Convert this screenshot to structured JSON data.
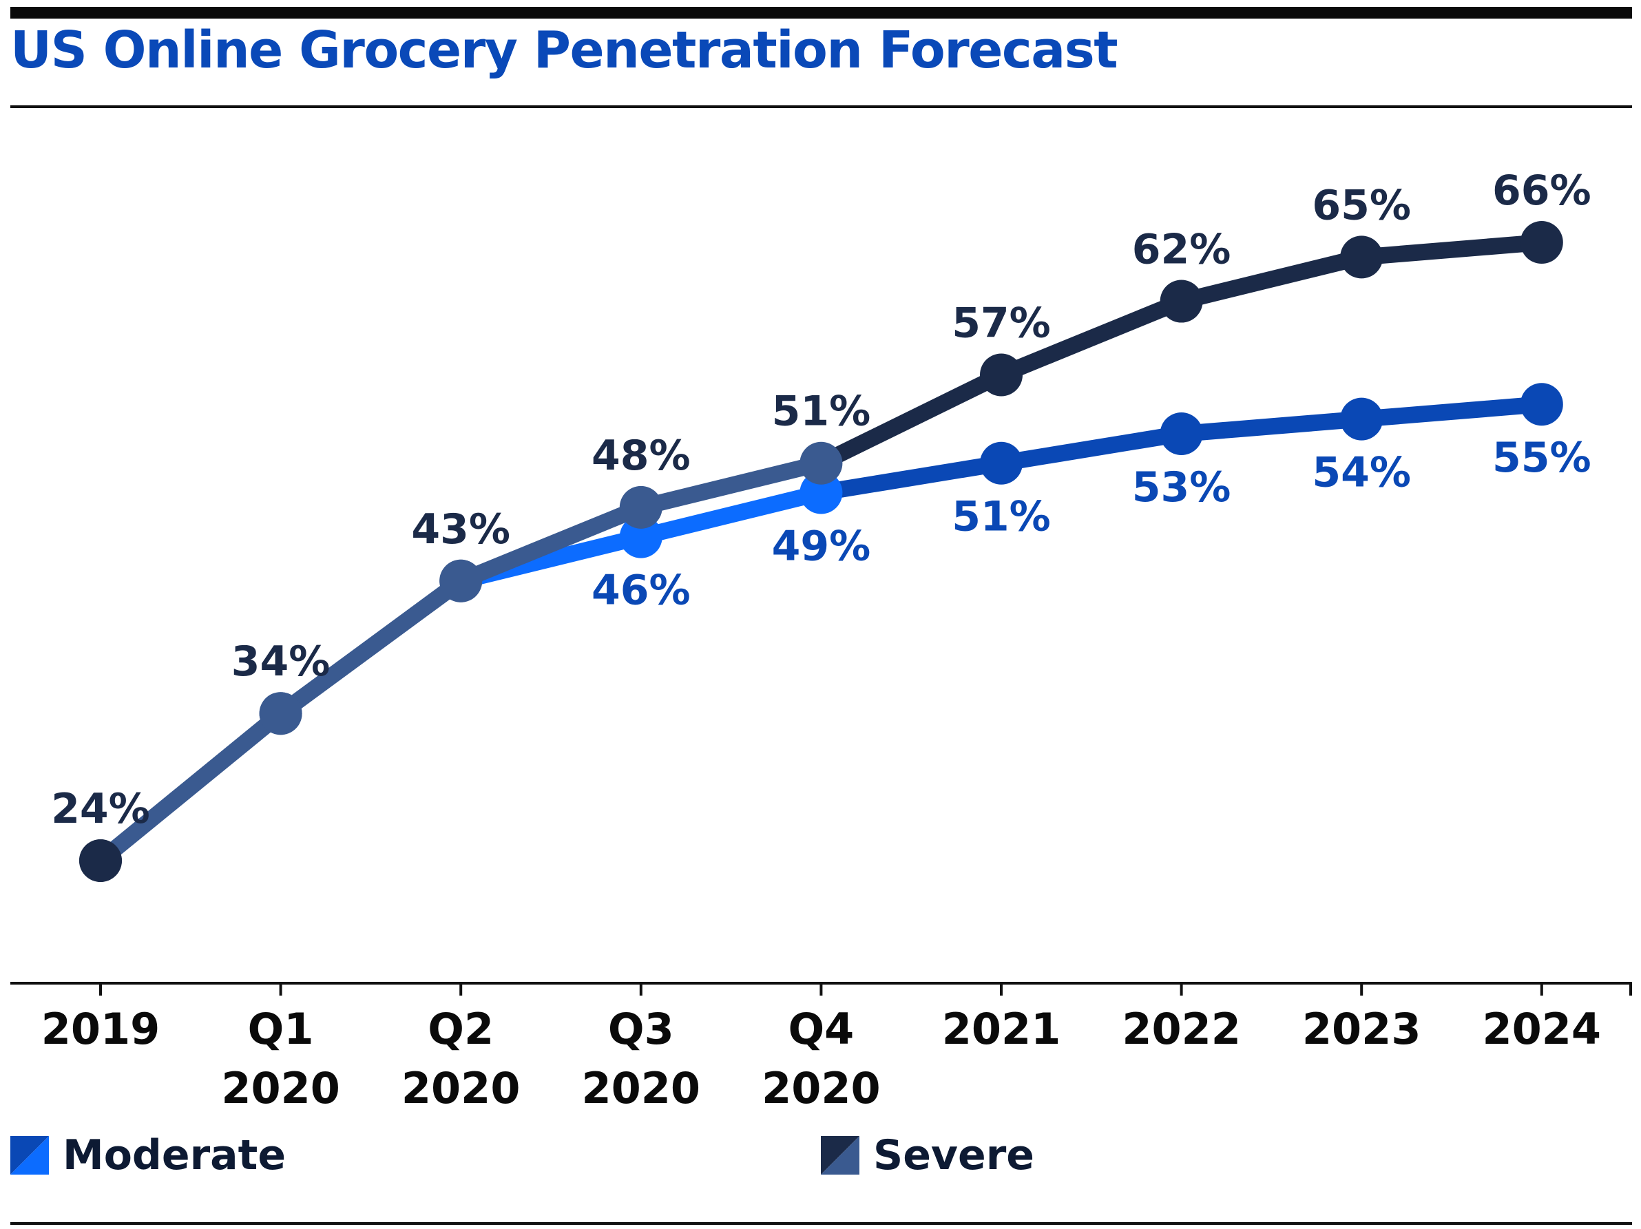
{
  "chart_data": {
    "type": "line",
    "title": "US Online Grocery Penetration Forecast",
    "xlabel": "",
    "ylabel": "",
    "ylim": [
      20,
      70
    ],
    "grid": false,
    "legend_position": "bottom",
    "categories": [
      [
        "2019"
      ],
      [
        "Q1",
        "2020"
      ],
      [
        "Q2",
        "2020"
      ],
      [
        "Q3",
        "2020"
      ],
      [
        "Q4",
        "2020"
      ],
      [
        "2021"
      ],
      [
        "2022"
      ],
      [
        "2023"
      ],
      [
        "2024"
      ]
    ],
    "series": [
      {
        "name": "Moderate",
        "values": [
          24,
          34,
          43,
          46,
          49,
          51,
          53,
          54,
          55
        ],
        "labels": [
          "",
          "",
          "",
          "46%",
          "49%",
          "51%",
          "53%",
          "54%",
          "55%"
        ],
        "colors": [
          "#1b2a48",
          "#3a5a90",
          "#3a5a90",
          "#0c6cff",
          "#0c6cff",
          "#0a48b5",
          "#0a48b5",
          "#0a48b5",
          "#0a48b5"
        ]
      },
      {
        "name": "Severe",
        "values": [
          24,
          34,
          43,
          48,
          51,
          57,
          62,
          65,
          66
        ],
        "labels": [
          "24%",
          "34%",
          "43%",
          "48%",
          "51%",
          "57%",
          "62%",
          "65%",
          "66%"
        ],
        "colors": [
          "#1b2a48",
          "#3a5a90",
          "#3a5a90",
          "#3a5a90",
          "#3a5a90",
          "#1b2a48",
          "#1b2a48",
          "#1b2a48",
          "#1b2a48"
        ]
      }
    ]
  },
  "legend": {
    "moderate": {
      "label": "Moderate",
      "color_a": "#0a48b5",
      "color_b": "#0c6cff"
    },
    "severe": {
      "label": "Severe",
      "color_a": "#1b2a48",
      "color_b": "#3a5a90"
    }
  },
  "colors": {
    "title": "#0a49b8",
    "moderate_label": "#0a48b5",
    "severe_label": "#1b2a48",
    "axis": "#111111"
  }
}
